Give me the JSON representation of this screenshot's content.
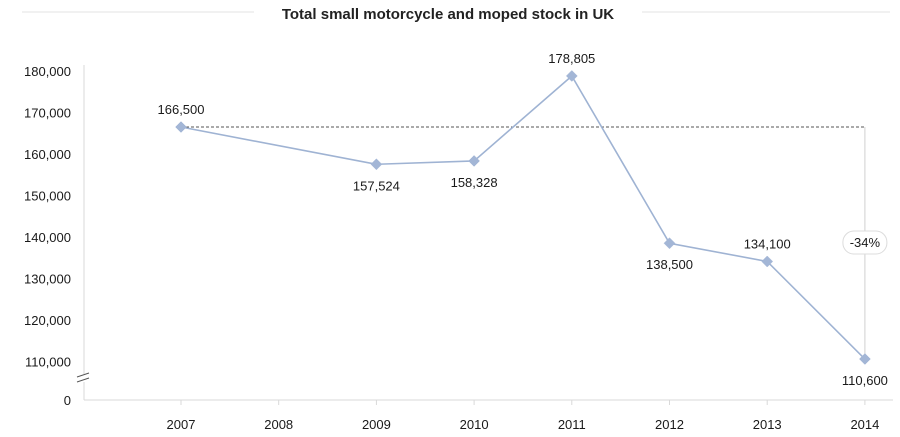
{
  "chart_data": {
    "type": "line",
    "title": "Total small motorcycle and moped stock in UK",
    "xlabel": "",
    "ylabel": "",
    "categories": [
      "2007",
      "2008",
      "2009",
      "2010",
      "2011",
      "2012",
      "2013",
      "2014"
    ],
    "series": [
      {
        "values": [
          166500,
          null,
          157524,
          158328,
          178805,
          138500,
          134100,
          110600
        ],
        "data_labels": [
          "166,500",
          "",
          "157,524",
          "158,328",
          "178,805",
          "138,500",
          "134,100",
          "110,600"
        ]
      }
    ],
    "y_ticks": [
      {
        "value": 180000,
        "label": "180,000"
      },
      {
        "value": 170000,
        "label": "170,000"
      },
      {
        "value": 160000,
        "label": "160,000"
      },
      {
        "value": 150000,
        "label": "150,000"
      },
      {
        "value": 140000,
        "label": "140,000"
      },
      {
        "value": 130000,
        "label": "130,000"
      },
      {
        "value": 120000,
        "label": "120,000"
      },
      {
        "value": 110000,
        "label": "110,000"
      }
    ],
    "y_zero_label": "0",
    "ylim": [
      100000,
      180000
    ],
    "y_axis_break": true,
    "reference_line": {
      "value": 166500,
      "style": "dashed"
    },
    "change_annotation": {
      "label": "-34%",
      "from": 166500,
      "to": 110600
    },
    "grid": false,
    "colors": {
      "series": "#9fb3d3",
      "marker": "#a3b6d6",
      "axis": "#d9d9d9",
      "reference": "#555555"
    }
  }
}
